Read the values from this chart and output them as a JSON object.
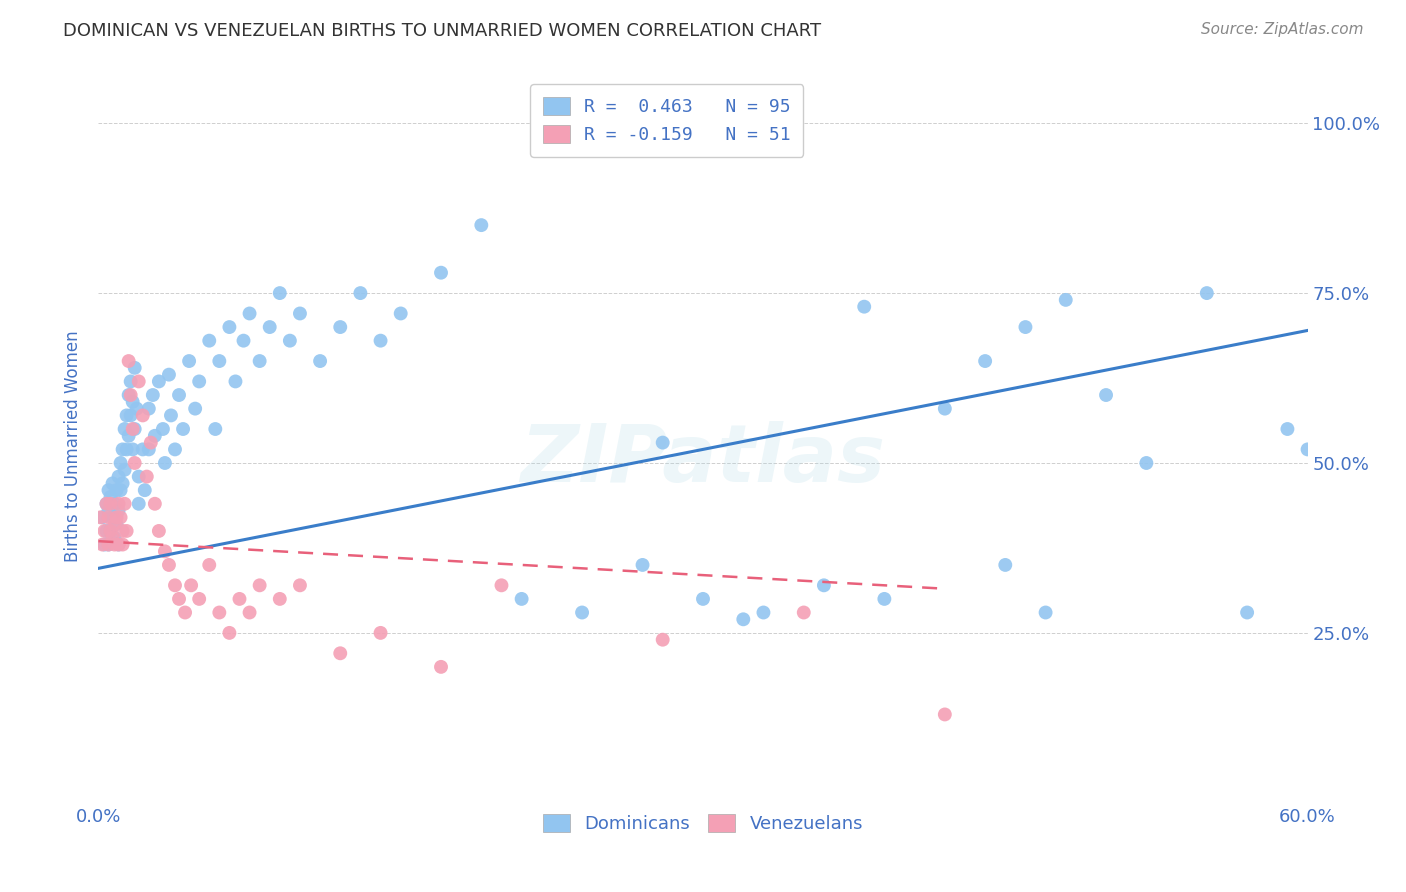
{
  "title": "DOMINICAN VS VENEZUELAN BIRTHS TO UNMARRIED WOMEN CORRELATION CHART",
  "source": "Source: ZipAtlas.com",
  "ylabel": "Births to Unmarried Women",
  "ytick_labels": [
    "100.0%",
    "75.0%",
    "50.0%",
    "25.0%"
  ],
  "ytick_values": [
    1.0,
    0.75,
    0.5,
    0.25
  ],
  "xlim": [
    0.0,
    0.6
  ],
  "ylim": [
    0.0,
    1.05
  ],
  "dominican_R": 0.463,
  "dominican_N": 95,
  "venezuelan_R": -0.159,
  "venezuelan_N": 51,
  "dominican_color": "#92C5F0",
  "venezuelan_color": "#F4A0B5",
  "dominican_line_color": "#3A7DC9",
  "venezuelan_line_color": "#E8607A",
  "watermark": "ZIPatlas",
  "background_color": "#FFFFFF",
  "grid_color": "#BBBBBB",
  "title_color": "#333333",
  "axis_label_color": "#4472C4",
  "legend_label1": "R =  0.463   N = 95",
  "legend_label2": "R = -0.159   N = 51",
  "dom_line_x": [
    0.0,
    0.6
  ],
  "dom_line_y": [
    0.345,
    0.695
  ],
  "ven_line_x": [
    0.0,
    0.42
  ],
  "ven_line_y": [
    0.385,
    0.315
  ],
  "dominican_x": [
    0.002,
    0.003,
    0.004,
    0.004,
    0.005,
    0.005,
    0.005,
    0.006,
    0.006,
    0.007,
    0.007,
    0.008,
    0.008,
    0.009,
    0.009,
    0.01,
    0.01,
    0.01,
    0.011,
    0.011,
    0.012,
    0.012,
    0.013,
    0.013,
    0.014,
    0.014,
    0.015,
    0.015,
    0.016,
    0.016,
    0.017,
    0.017,
    0.018,
    0.018,
    0.019,
    0.02,
    0.02,
    0.022,
    0.023,
    0.025,
    0.025,
    0.027,
    0.028,
    0.03,
    0.032,
    0.033,
    0.035,
    0.036,
    0.038,
    0.04,
    0.042,
    0.045,
    0.048,
    0.05,
    0.055,
    0.058,
    0.06,
    0.065,
    0.068,
    0.072,
    0.075,
    0.08,
    0.085,
    0.09,
    0.095,
    0.1,
    0.11,
    0.12,
    0.13,
    0.14,
    0.15,
    0.17,
    0.19,
    0.21,
    0.24,
    0.27,
    0.3,
    0.33,
    0.36,
    0.39,
    0.42,
    0.45,
    0.47,
    0.5,
    0.52,
    0.55,
    0.57,
    0.59,
    0.32,
    0.28,
    0.38,
    0.46,
    0.6,
    0.48,
    0.44
  ],
  "dominican_y": [
    0.42,
    0.38,
    0.44,
    0.4,
    0.46,
    0.38,
    0.43,
    0.45,
    0.4,
    0.47,
    0.42,
    0.44,
    0.39,
    0.46,
    0.41,
    0.48,
    0.43,
    0.38,
    0.5,
    0.46,
    0.52,
    0.47,
    0.55,
    0.49,
    0.57,
    0.52,
    0.6,
    0.54,
    0.62,
    0.57,
    0.59,
    0.52,
    0.64,
    0.55,
    0.58,
    0.48,
    0.44,
    0.52,
    0.46,
    0.58,
    0.52,
    0.6,
    0.54,
    0.62,
    0.55,
    0.5,
    0.63,
    0.57,
    0.52,
    0.6,
    0.55,
    0.65,
    0.58,
    0.62,
    0.68,
    0.55,
    0.65,
    0.7,
    0.62,
    0.68,
    0.72,
    0.65,
    0.7,
    0.75,
    0.68,
    0.72,
    0.65,
    0.7,
    0.75,
    0.68,
    0.72,
    0.78,
    0.85,
    0.3,
    0.28,
    0.35,
    0.3,
    0.28,
    0.32,
    0.3,
    0.58,
    0.35,
    0.28,
    0.6,
    0.5,
    0.75,
    0.28,
    0.55,
    0.27,
    0.53,
    0.73,
    0.7,
    0.52,
    0.74,
    0.65
  ],
  "venezuelan_x": [
    0.001,
    0.002,
    0.003,
    0.004,
    0.005,
    0.005,
    0.006,
    0.006,
    0.007,
    0.008,
    0.008,
    0.009,
    0.01,
    0.01,
    0.011,
    0.012,
    0.012,
    0.013,
    0.014,
    0.015,
    0.016,
    0.017,
    0.018,
    0.02,
    0.022,
    0.024,
    0.026,
    0.028,
    0.03,
    0.033,
    0.035,
    0.038,
    0.04,
    0.043,
    0.046,
    0.05,
    0.055,
    0.06,
    0.065,
    0.07,
    0.075,
    0.08,
    0.09,
    0.1,
    0.12,
    0.14,
    0.17,
    0.2,
    0.28,
    0.35,
    0.42
  ],
  "venezuelan_y": [
    0.42,
    0.38,
    0.4,
    0.44,
    0.38,
    0.42,
    0.4,
    0.44,
    0.39,
    0.41,
    0.38,
    0.42,
    0.44,
    0.38,
    0.42,
    0.4,
    0.38,
    0.44,
    0.4,
    0.65,
    0.6,
    0.55,
    0.5,
    0.62,
    0.57,
    0.48,
    0.53,
    0.44,
    0.4,
    0.37,
    0.35,
    0.32,
    0.3,
    0.28,
    0.32,
    0.3,
    0.35,
    0.28,
    0.25,
    0.3,
    0.28,
    0.32,
    0.3,
    0.32,
    0.22,
    0.25,
    0.2,
    0.32,
    0.24,
    0.28,
    0.13
  ]
}
